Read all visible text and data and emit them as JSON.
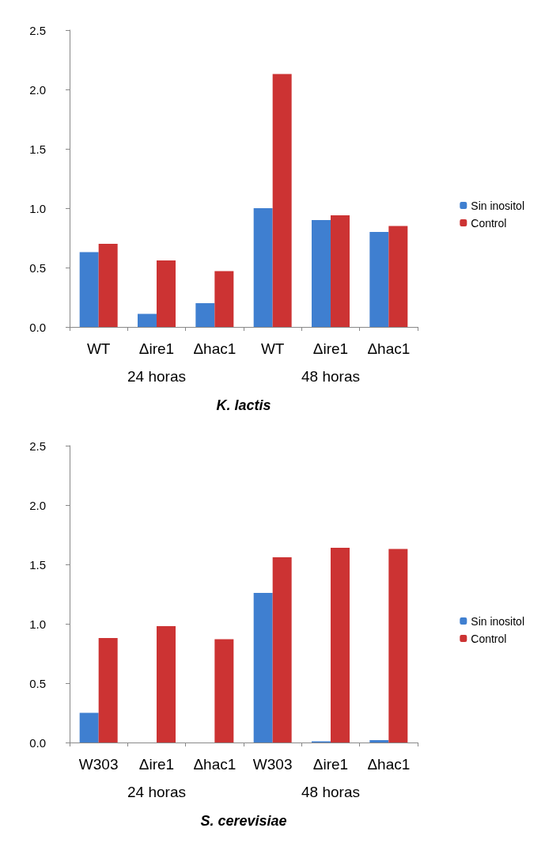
{
  "chart_data": [
    {
      "type": "bar",
      "xlabel": "K. lactis",
      "categories": [
        "WT",
        "Δire1",
        "Δhac1",
        "WT",
        "Δire1",
        "Δhac1"
      ],
      "annotations": [
        "24 horas",
        "48 horas"
      ],
      "series": [
        {
          "name": "Sin inositol",
          "color": "#3f7fd0",
          "values": [
            0.63,
            0.11,
            0.2,
            1.0,
            0.9,
            0.8
          ]
        },
        {
          "name": "Control",
          "color": "#cc3333",
          "values": [
            0.7,
            0.56,
            0.47,
            2.13,
            0.94,
            0.85
          ]
        }
      ],
      "ylim": [
        0,
        2.5
      ],
      "yticks": [
        {
          "value": 0,
          "label": "0.0"
        },
        {
          "value": 0.5,
          "label": "0.5"
        },
        {
          "value": 1,
          "label": "1.0"
        },
        {
          "value": 1.5,
          "label": "1.5"
        },
        {
          "value": 2,
          "label": "2.0"
        },
        {
          "value": 2.5,
          "label": "2.5"
        }
      ],
      "grid": false,
      "legend": "right"
    },
    {
      "type": "bar",
      "xlabel": "S. cerevisiae",
      "categories": [
        "W303",
        "Δire1",
        "Δhac1",
        "W303",
        "Δire1",
        "Δhac1"
      ],
      "annotations": [
        "24 horas",
        "48 horas"
      ],
      "series": [
        {
          "name": "Sin inositol",
          "color": "#3f7fd0",
          "values": [
            0.25,
            0,
            0,
            1.26,
            0.01,
            0.02
          ]
        },
        {
          "name": "Control",
          "color": "#cc3333",
          "values": [
            0.88,
            0.98,
            0.87,
            1.56,
            1.64,
            1.63
          ]
        }
      ],
      "ylim": [
        0,
        2.5
      ],
      "yticks": [
        {
          "value": 0,
          "label": "0.0"
        },
        {
          "value": 0.5,
          "label": "0.5"
        },
        {
          "value": 1,
          "label": "1.0"
        },
        {
          "value": 1.5,
          "label": "1.5"
        },
        {
          "value": 2,
          "label": "2.0"
        },
        {
          "value": 2.5,
          "label": "2.5"
        }
      ],
      "grid": false,
      "legend": "right"
    }
  ]
}
